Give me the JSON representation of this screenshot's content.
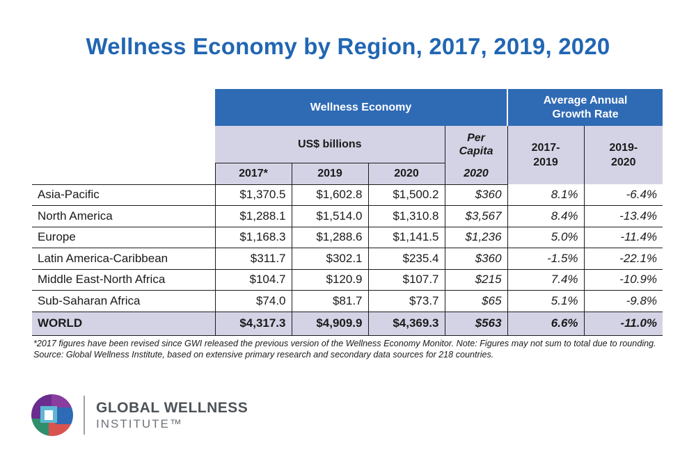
{
  "title": "Wellness Economy by Region, 2017, 2019, 2020",
  "headers": {
    "wellness_economy": "Wellness Economy",
    "avg_growth": "Average Annual Growth Rate",
    "usd_billions": "US$ billions",
    "per_capita": "Per Capita",
    "years": [
      "2017*",
      "2019",
      "2020"
    ],
    "per_capita_year": "2020",
    "growth_periods": [
      "2017-2019",
      "2019-2020"
    ]
  },
  "rows": [
    {
      "region": "Asia-Pacific",
      "v2017": "$1,370.5",
      "v2019": "$1,602.8",
      "v2020": "$1,500.2",
      "per_capita": "$360",
      "g1": "8.1%",
      "g2": "-6.4%"
    },
    {
      "region": "North America",
      "v2017": "$1,288.1",
      "v2019": "$1,514.0",
      "v2020": "$1,310.8",
      "per_capita": "$3,567",
      "g1": "8.4%",
      "g2": "-13.4%"
    },
    {
      "region": "Europe",
      "v2017": "$1,168.3",
      "v2019": "$1,288.6",
      "v2020": "$1,141.5",
      "per_capita": "$1,236",
      "g1": "5.0%",
      "g2": "-11.4%"
    },
    {
      "region": "Latin America-Caribbean",
      "v2017": "$311.7",
      "v2019": "$302.1",
      "v2020": "$235.4",
      "per_capita": "$360",
      "g1": "-1.5%",
      "g2": "-22.1%"
    },
    {
      "region": "Middle East-North Africa",
      "v2017": "$104.7",
      "v2019": "$120.9",
      "v2020": "$107.7",
      "per_capita": "$215",
      "g1": "7.4%",
      "g2": "-10.9%"
    },
    {
      "region": "Sub-Saharan Africa",
      "v2017": "$74.0",
      "v2019": "$81.7",
      "v2020": "$73.7",
      "per_capita": "$65",
      "g1": "5.1%",
      "g2": "-9.8%"
    }
  ],
  "world": {
    "region": "WORLD",
    "v2017": "$4,317.3",
    "v2019": "$4,909.9",
    "v2020": "$4,369.3",
    "per_capita": "$563",
    "g1": "6.6%",
    "g2": "-11.0%"
  },
  "footnote": "*2017 figures have been revised since GWI released the previous version of the Wellness Economy Monitor. Note: Figures may not sum to total due to rounding. Source: Global Wellness Institute, based on extensive primary research and secondary data sources for 218 countries.",
  "logo": {
    "line1": "GLOBAL WELLNESS",
    "line2": "INSTITUTE™"
  },
  "colors": {
    "title_blue": "#2166b3",
    "header_blue": "#2f6ab5",
    "header_lavender": "#d4d3e6"
  }
}
